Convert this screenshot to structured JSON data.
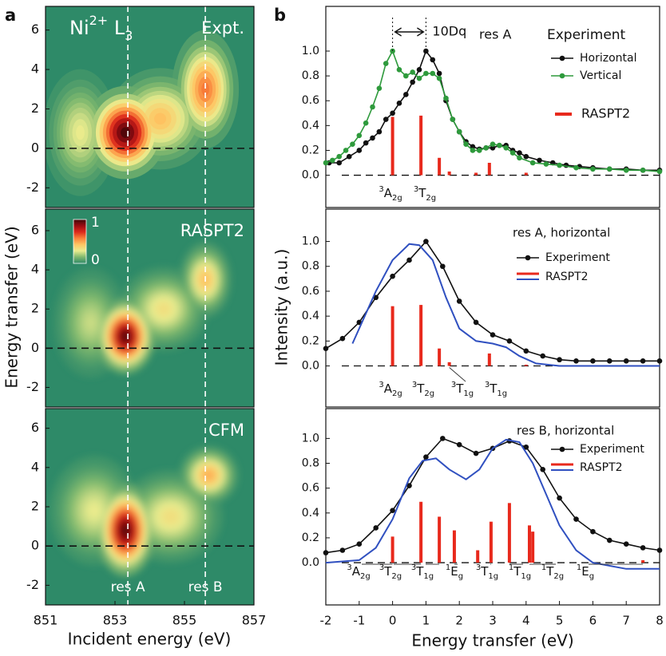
{
  "panel_labels": [
    "a",
    "b"
  ],
  "chart_data": [
    {
      "type": "heatmap",
      "title_parts": [
        {
          "text": "Ni"
        },
        {
          "text": "2+",
          "sup": true
        },
        {
          "text": " L"
        },
        {
          "text": "3",
          "sub": true
        }
      ],
      "label": "Expt.",
      "xlim": [
        851,
        857
      ],
      "ylim": [
        -3,
        7.2
      ],
      "yticks": [
        -2,
        0,
        2,
        4,
        6
      ],
      "hline": 0,
      "smooth": false,
      "colormap": [
        "#2e8a68",
        "#7fb86e",
        "#e9ec8e",
        "#fec663",
        "#f9813a",
        "#dc2a1c",
        "#9b0c12",
        "#3d0608"
      ],
      "dashed_lines": [
        {
          "x": 853.37
        },
        {
          "x": 855.6
        }
      ],
      "peaks": [
        {
          "x": 853.3,
          "y": 0.8,
          "amp": 1,
          "sx": 0.55,
          "sy": 1.1
        },
        {
          "x": 855.6,
          "y": 3.0,
          "amp": 0.6,
          "sx": 0.45,
          "sy": 1.4
        },
        {
          "x": 854.3,
          "y": 1.5,
          "amp": 0.45,
          "sx": 0.7,
          "sy": 1.2
        },
        {
          "x": 852.0,
          "y": 0.8,
          "amp": 0.3,
          "sx": 0.5,
          "sy": 1.5
        }
      ]
    },
    {
      "type": "heatmap",
      "label": "RASPT2",
      "xlim": [
        851,
        857
      ],
      "ylim": [
        -3,
        7.1
      ],
      "yticks": [
        -2,
        0,
        2,
        4,
        6
      ],
      "hline": 0,
      "smooth": true,
      "ylabel": "Energy transfer (eV)",
      "colormap": [
        "#2e8a68",
        "#7fb86e",
        "#e9ec8e",
        "#fec663",
        "#f9813a",
        "#dc2a1c",
        "#9b0c12",
        "#3d0608"
      ],
      "colorbar_ticks": [
        0,
        1
      ],
      "dashed_lines": [
        {
          "x": 853.37
        },
        {
          "x": 855.6
        }
      ],
      "peaks": [
        {
          "x": 853.3,
          "y": 0.6,
          "amp": 1,
          "sx": 0.4,
          "sy": 0.9
        },
        {
          "x": 855.6,
          "y": 3.5,
          "amp": 0.45,
          "sx": 0.35,
          "sy": 0.9
        },
        {
          "x": 854.4,
          "y": 2.0,
          "amp": 0.35,
          "sx": 0.6,
          "sy": 1.0
        },
        {
          "x": 852.3,
          "y": 1.3,
          "amp": 0.25,
          "sx": 0.5,
          "sy": 1.3
        }
      ]
    },
    {
      "type": "heatmap",
      "label": "CFM",
      "xlim": [
        851,
        857
      ],
      "ylim": [
        -3,
        7.0
      ],
      "yticks": [
        -2,
        0,
        2,
        4,
        6
      ],
      "xticks": [
        851,
        853,
        855,
        857
      ],
      "hline": 0,
      "smooth": true,
      "xlabel": "Incident energy (eV)",
      "colormap": [
        "#2e8a68",
        "#7fb86e",
        "#e9ec8e",
        "#fec663",
        "#f9813a",
        "#dc2a1c",
        "#9b0c12",
        "#3d0608"
      ],
      "dashed_lines": [
        {
          "x": 853.37,
          "label": "res A"
        },
        {
          "x": 855.6,
          "label": "res B"
        }
      ],
      "peaks": [
        {
          "x": 853.3,
          "y": 0.8,
          "amp": 1,
          "sx": 0.4,
          "sy": 1.1
        },
        {
          "x": 855.7,
          "y": 3.6,
          "amp": 0.5,
          "sx": 0.4,
          "sy": 0.7
        },
        {
          "x": 854.6,
          "y": 1.5,
          "amp": 0.35,
          "sx": 0.7,
          "sy": 1.1
        },
        {
          "x": 852.4,
          "y": 1.8,
          "amp": 0.3,
          "sx": 0.6,
          "sy": 1.3
        }
      ]
    },
    {
      "type": "line",
      "xlim": [
        -2,
        8
      ],
      "ylim": [
        -0.26,
        1.36
      ],
      "baseline": 0,
      "yticks": [
        {
          "value": 0,
          "label": "0.0"
        },
        0.2,
        0.4,
        0.6,
        0.8,
        {
          "value": 1,
          "label": "1.0"
        }
      ],
      "note": "res A",
      "legend_title": "Experiment",
      "annotation": {
        "text": "10Dq",
        "x": [
          0,
          1
        ]
      },
      "series": [
        {
          "name": "Horizontal",
          "color": "#111111",
          "marker": true,
          "x": [
            -1.9,
            -1.6,
            -1.3,
            -1.0,
            -0.8,
            -0.6,
            -0.4,
            -0.2,
            0,
            0.2,
            0.4,
            0.6,
            0.8,
            1.0,
            1.2,
            1.4,
            1.6,
            1.8,
            2.0,
            2.2,
            2.4,
            2.6,
            2.8,
            3.0,
            3.2,
            3.4,
            3.6,
            3.8,
            4.0,
            4.4,
            4.8,
            5.2,
            5.6,
            6.0,
            6.5,
            7.0,
            7.5,
            8.0
          ],
          "values": [
            0.1,
            0.1,
            0.15,
            0.2,
            0.26,
            0.3,
            0.35,
            0.45,
            0.5,
            0.58,
            0.65,
            0.75,
            0.85,
            1.0,
            0.93,
            0.82,
            0.6,
            0.45,
            0.35,
            0.27,
            0.23,
            0.21,
            0.22,
            0.22,
            0.24,
            0.24,
            0.2,
            0.18,
            0.15,
            0.12,
            0.1,
            0.08,
            0.07,
            0.06,
            0.05,
            0.05,
            0.04,
            0.04
          ]
        },
        {
          "name": "Vertical",
          "color": "#2e9a3c",
          "marker": true,
          "x": [
            -2,
            -1.8,
            -1.6,
            -1.4,
            -1.2,
            -1.0,
            -0.8,
            -0.6,
            -0.4,
            -0.2,
            0,
            0.2,
            0.4,
            0.6,
            0.8,
            1.0,
            1.2,
            1.4,
            1.6,
            1.8,
            2.0,
            2.2,
            2.4,
            2.6,
            2.8,
            3.0,
            3.2,
            3.4,
            3.6,
            3.8,
            4.2,
            4.6,
            5.0,
            5.5,
            6.0,
            6.5,
            7.0,
            7.5,
            8.0
          ],
          "values": [
            0.1,
            0.12,
            0.15,
            0.2,
            0.25,
            0.32,
            0.42,
            0.55,
            0.7,
            0.9,
            1.0,
            0.85,
            0.8,
            0.83,
            0.78,
            0.82,
            0.82,
            0.78,
            0.62,
            0.45,
            0.35,
            0.25,
            0.2,
            0.2,
            0.22,
            0.25,
            0.24,
            0.22,
            0.18,
            0.14,
            0.1,
            0.09,
            0.08,
            0.06,
            0.05,
            0.05,
            0.04,
            0.04,
            0.03
          ]
        }
      ],
      "sticks": {
        "name": "RASPT2",
        "color": "#e8291c",
        "x": [
          0,
          0.85,
          1.4,
          1.7,
          2.5,
          2.9,
          4.0
        ],
        "values": [
          0.47,
          0.48,
          0.14,
          0.03,
          0.02,
          0.1,
          0.02
        ]
      },
      "term_labels": [
        [
          {
            "text": "3",
            "sup": true
          },
          {
            "text": "A"
          },
          {
            "text": "2g",
            "sub": true
          }
        ],
        [
          {
            "text": "3",
            "sup": true
          },
          {
            "text": "T"
          },
          {
            "text": "2g",
            "sub": true
          }
        ]
      ]
    },
    {
      "type": "line",
      "xlim": [
        -2,
        8
      ],
      "ylim": [
        -0.33,
        1.26
      ],
      "baseline": 0,
      "yticks": [
        {
          "value": 0,
          "label": "0.0"
        },
        0.2,
        0.4,
        0.6,
        0.8,
        {
          "value": 1,
          "label": "1.0"
        }
      ],
      "ylabel": "Intensity (a.u.)",
      "legend_title": "res A, horizontal",
      "series": [
        {
          "name": "Experiment",
          "color": "#111111",
          "marker": true,
          "x": [
            -2,
            -1.5,
            -1,
            -0.5,
            0,
            0.5,
            1,
            1.5,
            2,
            2.5,
            3,
            3.5,
            4,
            4.5,
            5,
            5.5,
            6,
            6.5,
            7,
            7.5,
            8
          ],
          "values": [
            0.14,
            0.22,
            0.35,
            0.55,
            0.72,
            0.85,
            1.0,
            0.8,
            0.52,
            0.35,
            0.25,
            0.2,
            0.12,
            0.08,
            0.05,
            0.04,
            0.04,
            0.04,
            0.04,
            0.04,
            0.04
          ]
        },
        {
          "name": "RASPT2",
          "color": "#3050c0",
          "marker": false,
          "x": [
            -1.2,
            -1,
            -0.5,
            0,
            0.5,
            0.8,
            1.2,
            1.6,
            2.0,
            2.5,
            3.0,
            3.4,
            3.8,
            4.3,
            5,
            6,
            7,
            8
          ],
          "values": [
            0.18,
            0.3,
            0.6,
            0.85,
            0.98,
            0.97,
            0.85,
            0.55,
            0.3,
            0.2,
            0.18,
            0.15,
            0.08,
            0.02,
            0.0,
            0.0,
            0.0,
            0.0
          ]
        }
      ],
      "sticks": {
        "color": "#e8291c",
        "x": [
          0,
          0.85,
          1.4,
          1.7,
          2.9,
          4.0
        ],
        "values": [
          0.48,
          0.49,
          0.14,
          0.03,
          0.1,
          0.01
        ]
      },
      "term_labels": [
        [
          {
            "text": "3",
            "sup": true
          },
          {
            "text": "A"
          },
          {
            "text": "2g",
            "sub": true
          }
        ],
        [
          {
            "text": "3",
            "sup": true
          },
          {
            "text": "T"
          },
          {
            "text": "2g",
            "sub": true
          }
        ],
        [
          {
            "text": "3",
            "sup": true
          },
          {
            "text": "T"
          },
          {
            "text": "1g",
            "sub": true
          }
        ],
        [
          {
            "text": "3",
            "sup": true
          },
          {
            "text": "T"
          },
          {
            "text": "1g",
            "sub": true
          }
        ]
      ]
    },
    {
      "type": "line",
      "xlim": [
        -2,
        8
      ],
      "ylim": [
        -0.34,
        1.24
      ],
      "baseline": 0,
      "yticks": [
        {
          "value": 0,
          "label": "0.0"
        },
        0.2,
        0.4,
        0.6,
        0.8,
        {
          "value": 1,
          "label": "1.0"
        }
      ],
      "xticks": [
        -2,
        -1,
        0,
        1,
        2,
        3,
        4,
        5,
        6,
        7,
        8
      ],
      "xlabel": "Energy transfer (eV)",
      "legend_title": "res B, horizontal",
      "series": [
        {
          "name": "Experiment",
          "color": "#111111",
          "marker": true,
          "x": [
            -2,
            -1.5,
            -1,
            -0.5,
            0,
            0.5,
            1,
            1.5,
            2,
            2.5,
            3,
            3.5,
            4,
            4.5,
            5,
            5.5,
            6,
            6.5,
            7,
            7.5,
            8
          ],
          "values": [
            0.08,
            0.1,
            0.15,
            0.28,
            0.42,
            0.62,
            0.85,
            1.0,
            0.95,
            0.88,
            0.92,
            0.98,
            0.93,
            0.75,
            0.52,
            0.35,
            0.25,
            0.18,
            0.15,
            0.12,
            0.1
          ]
        },
        {
          "name": "RASPT2",
          "color": "#3050c0",
          "marker": false,
          "x": [
            -2,
            -1,
            -0.5,
            0,
            0.5,
            0.9,
            1.3,
            1.7,
            2.2,
            2.6,
            3.0,
            3.4,
            3.8,
            4.2,
            4.6,
            5.0,
            5.5,
            6.0,
            7,
            8
          ],
          "values": [
            0,
            0.02,
            0.12,
            0.35,
            0.68,
            0.82,
            0.84,
            0.75,
            0.67,
            0.75,
            0.92,
            0.99,
            0.97,
            0.8,
            0.55,
            0.3,
            0.1,
            0.0,
            -0.05,
            -0.05
          ]
        }
      ],
      "sticks": {
        "color": "#e8291c",
        "x": [
          0,
          0.85,
          1.4,
          1.85,
          2.55,
          2.95,
          3.5,
          4.1,
          4.2,
          7.5
        ],
        "values": [
          0.21,
          0.49,
          0.37,
          0.26,
          0.1,
          0.33,
          0.48,
          0.3,
          0.25,
          0.02
        ]
      },
      "term_labels": [
        [
          {
            "text": "3",
            "sup": true
          },
          {
            "text": "A"
          },
          {
            "text": "2g",
            "sub": true
          }
        ],
        [
          {
            "text": "3",
            "sup": true
          },
          {
            "text": "T"
          },
          {
            "text": "2g",
            "sub": true
          }
        ],
        [
          {
            "text": "3",
            "sup": true
          },
          {
            "text": "T"
          },
          {
            "text": "1g",
            "sub": true
          }
        ],
        [
          {
            "text": "1",
            "sup": true
          },
          {
            "text": "E"
          },
          {
            "text": "g",
            "sub": true
          }
        ],
        [
          {
            "text": "3",
            "sup": true
          },
          {
            "text": "T"
          },
          {
            "text": "1g",
            "sub": true
          }
        ],
        [
          {
            "text": "1",
            "sup": true
          },
          {
            "text": "T"
          },
          {
            "text": "1g",
            "sub": true
          }
        ],
        [
          {
            "text": "1",
            "sup": true
          },
          {
            "text": "T"
          },
          {
            "text": "2g",
            "sub": true
          }
        ],
        [
          {
            "text": "1",
            "sup": true
          },
          {
            "text": "E"
          },
          {
            "text": "g",
            "sub": true
          }
        ]
      ]
    }
  ]
}
